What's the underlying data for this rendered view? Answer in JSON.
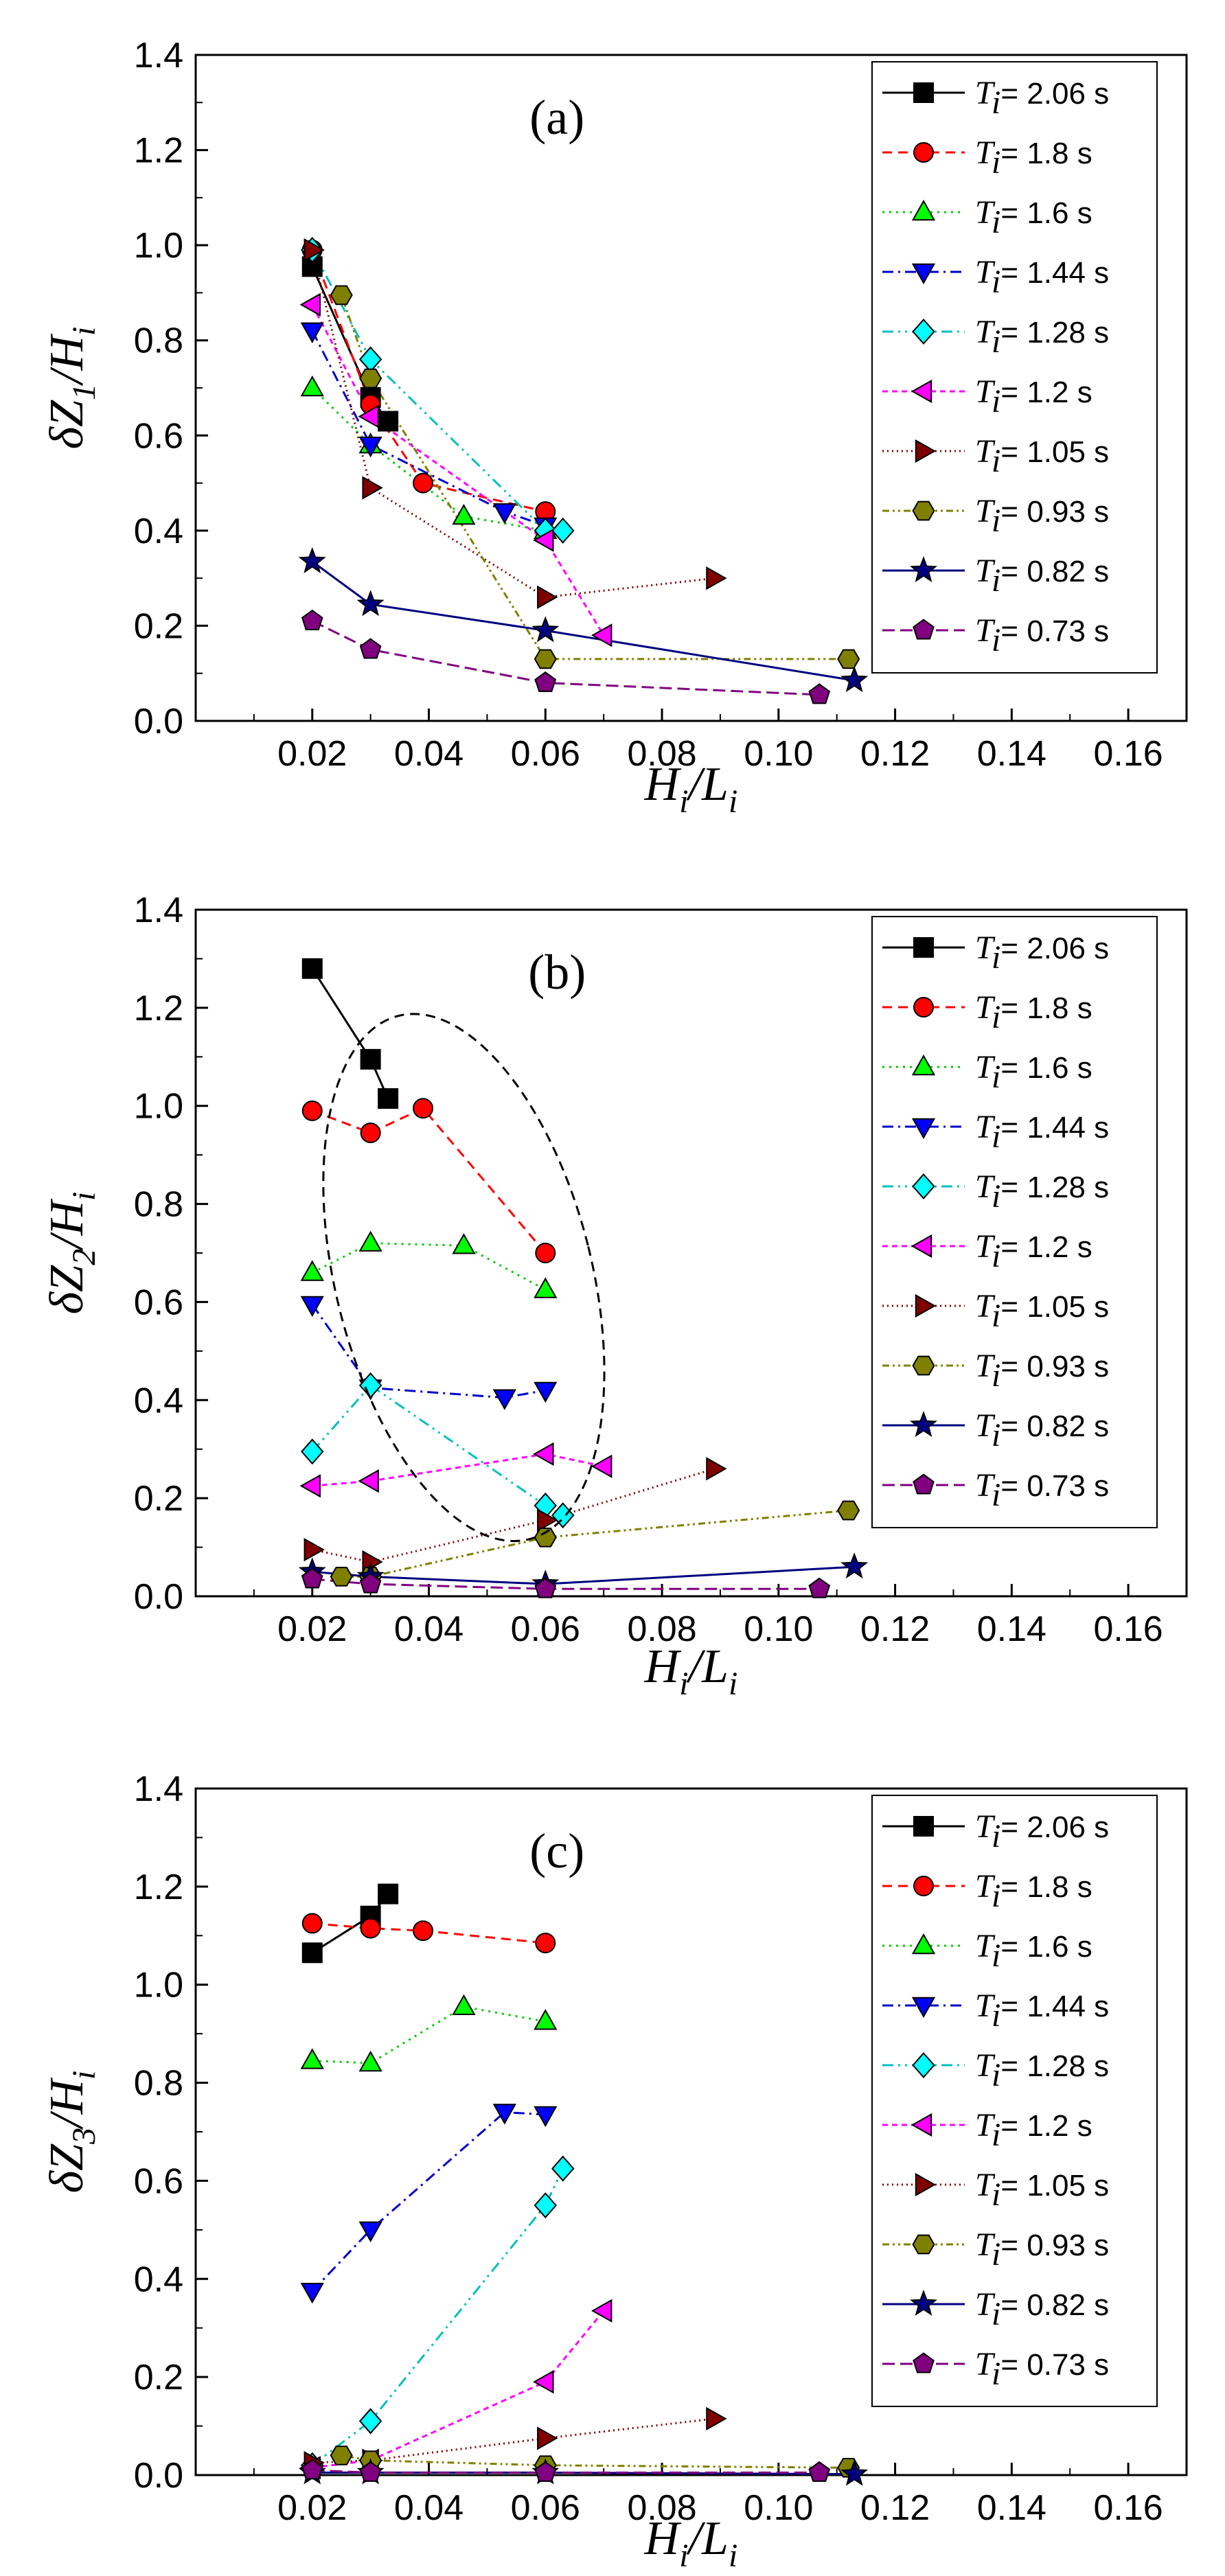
{
  "chart_data": [
    {
      "type": "line",
      "panel": "(a)",
      "ylabel_main": "δZ",
      "ylabel_sub": "1",
      "ylabel_den": "/H",
      "ylabel_den_sub": "i",
      "xlabel_main": "H",
      "xlabel_sub": "i",
      "xlabel_den": "/L",
      "xlabel_den_sub": "i",
      "xlim": [
        0.0,
        0.17
      ],
      "ylim": [
        0.0,
        1.4
      ],
      "xticks": [
        "0.02",
        "0.04",
        "0.06",
        "0.08",
        "0.10",
        "0.12",
        "0.14",
        "0.16"
      ],
      "yticks": [
        "0.0",
        "0.2",
        "0.4",
        "0.6",
        "0.8",
        "1.0",
        "1.2",
        "1.4"
      ],
      "series": [
        {
          "name": "2.06 s",
          "x": [
            0.02,
            0.03,
            0.033
          ],
          "y": [
            0.955,
            0.68,
            0.63
          ]
        },
        {
          "name": "1.8 s",
          "x": [
            0.02,
            0.03,
            0.039,
            0.06
          ],
          "y": [
            0.99,
            0.665,
            0.5,
            0.44
          ]
        },
        {
          "name": "1.6 s",
          "x": [
            0.02,
            0.03,
            0.046,
            0.06
          ],
          "y": [
            0.7,
            0.58,
            0.43,
            0.4
          ]
        },
        {
          "name": "1.44 s",
          "x": [
            0.02,
            0.03,
            0.053,
            0.06
          ],
          "y": [
            0.82,
            0.58,
            0.44,
            0.41
          ]
        },
        {
          "name": "1.28 s",
          "x": [
            0.02,
            0.03,
            0.06,
            0.063
          ],
          "y": [
            0.99,
            0.76,
            0.4,
            0.4
          ]
        },
        {
          "name": "1.2 s",
          "x": [
            0.02,
            0.03,
            0.06,
            0.07
          ],
          "y": [
            0.875,
            0.64,
            0.38,
            0.18
          ]
        },
        {
          "name": "1.05 s",
          "x": [
            0.02,
            0.03,
            0.06,
            0.089
          ],
          "y": [
            0.99,
            0.49,
            0.26,
            0.3
          ]
        },
        {
          "name": "0.93 s",
          "x": [
            0.025,
            0.03,
            0.06,
            0.112
          ],
          "y": [
            0.895,
            0.72,
            0.13,
            0.13
          ]
        },
        {
          "name": "0.82 s",
          "x": [
            0.02,
            0.03,
            0.06,
            0.113
          ],
          "y": [
            0.335,
            0.245,
            0.19,
            0.085
          ]
        },
        {
          "name": "0.73 s",
          "x": [
            0.02,
            0.03,
            0.06,
            0.107
          ],
          "y": [
            0.21,
            0.15,
            0.08,
            0.055
          ]
        }
      ]
    },
    {
      "type": "line",
      "panel": "(b)",
      "ylabel_main": "δZ",
      "ylabel_sub": "2",
      "ylabel_den": "/H",
      "ylabel_den_sub": "i",
      "xlabel_main": "H",
      "xlabel_sub": "i",
      "xlabel_den": "/L",
      "xlabel_den_sub": "i",
      "xlim": [
        0.0,
        0.17
      ],
      "ylim": [
        0.0,
        1.4
      ],
      "xticks": [
        "0.02",
        "0.04",
        "0.06",
        "0.08",
        "0.10",
        "0.12",
        "0.14",
        "0.16"
      ],
      "yticks": [
        "0.0",
        "0.2",
        "0.4",
        "0.6",
        "0.8",
        "1.0",
        "1.2",
        "1.4"
      ],
      "annotation": {
        "type": "dashed-ellipse",
        "cx": 0.046,
        "cy": 0.65,
        "rx": 0.022,
        "ry": 0.55,
        "rotation_deg": -14
      },
      "series": [
        {
          "name": "2.06 s",
          "x": [
            0.02,
            0.03,
            0.033
          ],
          "y": [
            1.28,
            1.095,
            1.015
          ]
        },
        {
          "name": "1.8 s",
          "x": [
            0.02,
            0.03,
            0.039,
            0.06
          ],
          "y": [
            0.99,
            0.945,
            0.995,
            0.7
          ]
        },
        {
          "name": "1.6 s",
          "x": [
            0.02,
            0.03,
            0.046,
            0.06
          ],
          "y": [
            0.66,
            0.72,
            0.715,
            0.625
          ]
        },
        {
          "name": "1.44 s",
          "x": [
            0.02,
            0.03,
            0.053,
            0.06
          ],
          "y": [
            0.595,
            0.425,
            0.405,
            0.42
          ]
        },
        {
          "name": "1.28 s",
          "x": [
            0.02,
            0.03,
            0.06,
            0.063
          ],
          "y": [
            0.295,
            0.43,
            0.185,
            0.165
          ]
        },
        {
          "name": "1.2 s",
          "x": [
            0.02,
            0.03,
            0.06,
            0.07
          ],
          "y": [
            0.225,
            0.235,
            0.29,
            0.265
          ]
        },
        {
          "name": "1.05 s",
          "x": [
            0.02,
            0.03,
            0.06,
            0.089
          ],
          "y": [
            0.095,
            0.07,
            0.155,
            0.26
          ]
        },
        {
          "name": "0.93 s",
          "x": [
            0.025,
            0.03,
            0.06,
            0.112
          ],
          "y": [
            0.04,
            0.04,
            0.12,
            0.175
          ]
        },
        {
          "name": "0.82 s",
          "x": [
            0.02,
            0.03,
            0.06,
            0.113
          ],
          "y": [
            0.05,
            0.04,
            0.025,
            0.06
          ]
        },
        {
          "name": "0.73 s",
          "x": [
            0.02,
            0.03,
            0.06,
            0.107
          ],
          "y": [
            0.035,
            0.025,
            0.015,
            0.015
          ]
        }
      ]
    },
    {
      "type": "line",
      "panel": "(c)",
      "ylabel_main": "δZ",
      "ylabel_sub": "3",
      "ylabel_den": "/H",
      "ylabel_den_sub": "i",
      "xlabel_main": "H",
      "xlabel_sub": "i",
      "xlabel_den": "/L",
      "xlabel_den_sub": "i",
      "xlim": [
        0.0,
        0.17
      ],
      "ylim": [
        0.0,
        1.4
      ],
      "xticks": [
        "0.02",
        "0.04",
        "0.06",
        "0.08",
        "0.10",
        "0.12",
        "0.14",
        "0.16"
      ],
      "yticks": [
        "0.0",
        "0.2",
        "0.4",
        "0.6",
        "0.8",
        "1.0",
        "1.2",
        "1.4"
      ],
      "series": [
        {
          "name": "2.06 s",
          "x": [
            0.02,
            0.03,
            0.033
          ],
          "y": [
            1.065,
            1.14,
            1.185
          ]
        },
        {
          "name": "1.8 s",
          "x": [
            0.02,
            0.03,
            0.039,
            0.06
          ],
          "y": [
            1.125,
            1.115,
            1.11,
            1.085
          ]
        },
        {
          "name": "1.6 s",
          "x": [
            0.02,
            0.03,
            0.046,
            0.06
          ],
          "y": [
            0.845,
            0.84,
            0.955,
            0.925
          ]
        },
        {
          "name": "1.44 s",
          "x": [
            0.02,
            0.03,
            0.053,
            0.06
          ],
          "y": [
            0.375,
            0.5,
            0.74,
            0.735
          ]
        },
        {
          "name": "1.28 s",
          "x": [
            0.02,
            0.03,
            0.06,
            0.063
          ],
          "y": [
            0.02,
            0.11,
            0.55,
            0.625
          ]
        },
        {
          "name": "1.2 s",
          "x": [
            0.02,
            0.03,
            0.06,
            0.07
          ],
          "y": [
            0.015,
            0.03,
            0.19,
            0.335
          ]
        },
        {
          "name": "1.05 s",
          "x": [
            0.02,
            0.03,
            0.06,
            0.089
          ],
          "y": [
            0.025,
            0.03,
            0.075,
            0.115
          ]
        },
        {
          "name": "0.93 s",
          "x": [
            0.025,
            0.03,
            0.06,
            0.112
          ],
          "y": [
            0.04,
            0.03,
            0.02,
            0.015
          ]
        },
        {
          "name": "0.82 s",
          "x": [
            0.02,
            0.03,
            0.06,
            0.113
          ],
          "y": [
            0.005,
            0.005,
            0.005,
            0.002
          ]
        },
        {
          "name": "0.73 s",
          "x": [
            0.02,
            0.03,
            0.06,
            0.107
          ],
          "y": [
            0.01,
            0.005,
            0.005,
            0.005
          ]
        }
      ]
    }
  ],
  "legend_prefix": "T",
  "legend_prefix_sub": "i",
  "legend_equals": "= ",
  "series_styles": [
    {
      "color": "#000000",
      "fill": "#000000",
      "marker": "square",
      "dash": ""
    },
    {
      "color": "#ff0000",
      "fill": "#ff0000",
      "marker": "circle",
      "dash": "14,9"
    },
    {
      "color": "#00cc00",
      "fill": "#00ff00",
      "marker": "triangle-up",
      "dash": "3,7"
    },
    {
      "color": "#0000cc",
      "fill": "#0000ff",
      "marker": "triangle-down",
      "dash": "16,7,3,7"
    },
    {
      "color": "#00bfbf",
      "fill": "#00ffff",
      "marker": "diamond",
      "dash": "16,7,3,7,3,7"
    },
    {
      "color": "#ff00ff",
      "fill": "#ff00ff",
      "marker": "triangle-left",
      "dash": "8,6"
    },
    {
      "color": "#800000",
      "fill": "#800000",
      "marker": "triangle-right",
      "dash": "2,5"
    },
    {
      "color": "#808000",
      "fill": "#808000",
      "marker": "hexagon",
      "dash": "10,5,3,5,3,5"
    },
    {
      "color": "#000080",
      "fill": "#000080",
      "marker": "star",
      "dash": ""
    },
    {
      "color": "#800080",
      "fill": "#800080",
      "marker": "pentagon",
      "dash": "18,8"
    }
  ]
}
